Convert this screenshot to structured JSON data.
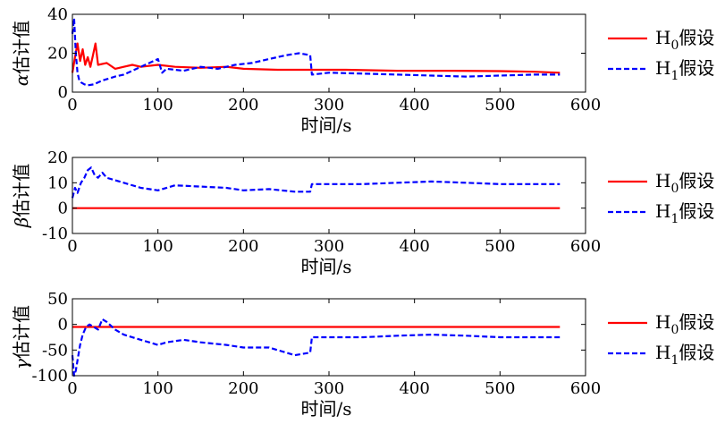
{
  "chart_data": [
    {
      "type": "line",
      "ylabel_symbol": "α",
      "ylabel_text": "估计值",
      "xlabel": "时间/s",
      "xlim": [
        0,
        600
      ],
      "ylim": [
        0,
        40
      ],
      "xticks": [
        "0",
        "100",
        "200",
        "300",
        "400",
        "500",
        "600"
      ],
      "yticks": [
        "0",
        "20",
        "40"
      ],
      "ytick_values": [
        0,
        20,
        40
      ],
      "grid": false,
      "legend": "right",
      "series": [
        {
          "label_main": "H",
          "label_sub": "0",
          "label_tail": "假设",
          "color": "#ff0000",
          "dash": "solid",
          "x": [
            0,
            3,
            6,
            9,
            12,
            15,
            18,
            21,
            24,
            27,
            30,
            40,
            50,
            60,
            70,
            80,
            100,
            120,
            150,
            180,
            200,
            240,
            280,
            320,
            380,
            440,
            500,
            540,
            570
          ],
          "y": [
            10,
            18,
            25,
            16,
            22,
            14,
            18,
            13,
            19,
            25,
            14,
            15,
            12,
            13,
            14,
            13,
            14,
            13,
            12.5,
            13,
            12,
            11.5,
            11.5,
            11.5,
            11,
            11,
            10.8,
            10.5,
            10
          ]
        },
        {
          "label_main": "H",
          "label_sub": "1",
          "label_tail": "假设",
          "color": "#0000ff",
          "dash": "dashed",
          "x": [
            0,
            2,
            4,
            6,
            8,
            10,
            14,
            18,
            25,
            35,
            50,
            60,
            70,
            80,
            90,
            100,
            105,
            110,
            130,
            150,
            170,
            190,
            210,
            230,
            250,
            265,
            278,
            280,
            300,
            340,
            380,
            420,
            460,
            500,
            540,
            570
          ],
          "y": [
            30,
            38,
            20,
            10,
            6,
            5,
            4,
            3.5,
            4,
            6,
            8,
            9,
            11,
            13,
            15,
            17,
            10,
            12,
            11,
            13,
            12,
            14,
            15,
            17,
            19,
            20,
            19,
            9,
            10,
            9.5,
            9,
            8.5,
            8,
            8.5,
            9,
            9
          ]
        }
      ]
    },
    {
      "type": "line",
      "ylabel_symbol": "β",
      "ylabel_text": "估计值",
      "xlabel": "时间/s",
      "xlim": [
        0,
        600
      ],
      "ylim": [
        -10,
        20
      ],
      "xticks": [
        "0",
        "100",
        "200",
        "300",
        "400",
        "500",
        "600"
      ],
      "yticks": [
        "-10",
        "0",
        "10",
        "20"
      ],
      "ytick_values": [
        -10,
        0,
        10,
        20
      ],
      "grid": false,
      "legend": "right",
      "series": [
        {
          "label_main": "H",
          "label_sub": "0",
          "label_tail": "假设",
          "color": "#ff0000",
          "dash": "solid",
          "x": [
            0,
            570
          ],
          "y": [
            0,
            0
          ]
        },
        {
          "label_main": "H",
          "label_sub": "1",
          "label_tail": "假设",
          "color": "#0000ff",
          "dash": "dashed",
          "x": [
            0,
            3,
            6,
            10,
            14,
            18,
            22,
            26,
            30,
            35,
            40,
            50,
            60,
            80,
            100,
            120,
            150,
            180,
            200,
            230,
            260,
            278,
            280,
            300,
            340,
            380,
            420,
            460,
            500,
            540,
            570
          ],
          "y": [
            4,
            8,
            6,
            10,
            12,
            15,
            16,
            13,
            12,
            14,
            12,
            11,
            10,
            8,
            7,
            9,
            8.5,
            8,
            7,
            7.5,
            6.5,
            6.5,
            9.5,
            9.5,
            9.5,
            10,
            10.5,
            10,
            9.5,
            9.5,
            9.5
          ]
        }
      ]
    },
    {
      "type": "line",
      "ylabel_symbol": "γ",
      "ylabel_text": "估计值",
      "xlabel": "时间/s",
      "xlim": [
        0,
        600
      ],
      "ylim": [
        -100,
        50
      ],
      "xticks": [
        "0",
        "100",
        "200",
        "300",
        "400",
        "500",
        "600"
      ],
      "yticks": [
        "-100",
        "-50",
        "0",
        "50"
      ],
      "ytick_values": [
        -100,
        -50,
        0,
        50
      ],
      "grid": false,
      "legend": "right",
      "series": [
        {
          "label_main": "H",
          "label_sub": "0",
          "label_tail": "假设",
          "color": "#ff0000",
          "dash": "solid",
          "x": [
            0,
            570
          ],
          "y": [
            -5,
            -5
          ]
        },
        {
          "label_main": "H",
          "label_sub": "1",
          "label_tail": "假设",
          "color": "#0000ff",
          "dash": "dashed",
          "x": [
            0,
            2,
            4,
            6,
            9,
            12,
            16,
            20,
            25,
            30,
            35,
            40,
            50,
            60,
            80,
            100,
            110,
            130,
            150,
            180,
            200,
            230,
            260,
            278,
            280,
            300,
            340,
            380,
            420,
            460,
            500,
            540,
            570
          ],
          "y": [
            -60,
            -100,
            -90,
            -70,
            -40,
            -20,
            -5,
            0,
            -5,
            -10,
            10,
            5,
            -10,
            -20,
            -30,
            -40,
            -35,
            -30,
            -35,
            -40,
            -45,
            -45,
            -60,
            -55,
            -25,
            -25,
            -25,
            -22,
            -20,
            -22,
            -25,
            -25,
            -25
          ]
        }
      ]
    }
  ]
}
